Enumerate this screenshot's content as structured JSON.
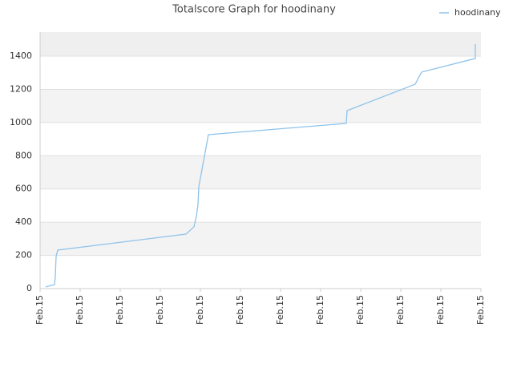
{
  "chart_data": {
    "type": "line",
    "title": "Totalscore Graph for hoodinany",
    "x": [
      0.14,
      0.36,
      0.38,
      0.4,
      0.44,
      3.64,
      3.84,
      3.9,
      3.94,
      3.96,
      4.2,
      7.64,
      7.66,
      9.36,
      9.52,
      10.86,
      10.86
    ],
    "series": [
      {
        "name": "hoodinany",
        "color": "#8fc3ea",
        "values": [
          10,
          24,
          72,
          193,
          232,
          328,
          372,
          435,
          507,
          613,
          927,
          995,
          1072,
          1231,
          1304,
          1386,
          1473
        ]
      }
    ],
    "xlim": [
      0,
      11
    ],
    "xticks": [
      {
        "value": 0,
        "label": "Feb.15"
      },
      {
        "value": 1,
        "label": "Feb.15"
      },
      {
        "value": 2,
        "label": "Feb.15"
      },
      {
        "value": 3,
        "label": "Feb.15"
      },
      {
        "value": 4,
        "label": "Feb.15"
      },
      {
        "value": 5,
        "label": "Feb.15"
      },
      {
        "value": 6,
        "label": "Feb.15"
      },
      {
        "value": 7,
        "label": "Feb.15"
      },
      {
        "value": 8,
        "label": "Feb.15"
      },
      {
        "value": 9,
        "label": "Feb.15"
      },
      {
        "value": 10,
        "label": "Feb.15"
      },
      {
        "value": 11,
        "label": "Feb.15"
      }
    ],
    "ylim": [
      0,
      1545
    ],
    "yticks": [
      0,
      200,
      400,
      600,
      800,
      1000,
      1200,
      1400
    ],
    "grid": true,
    "legend": "top-right"
  }
}
